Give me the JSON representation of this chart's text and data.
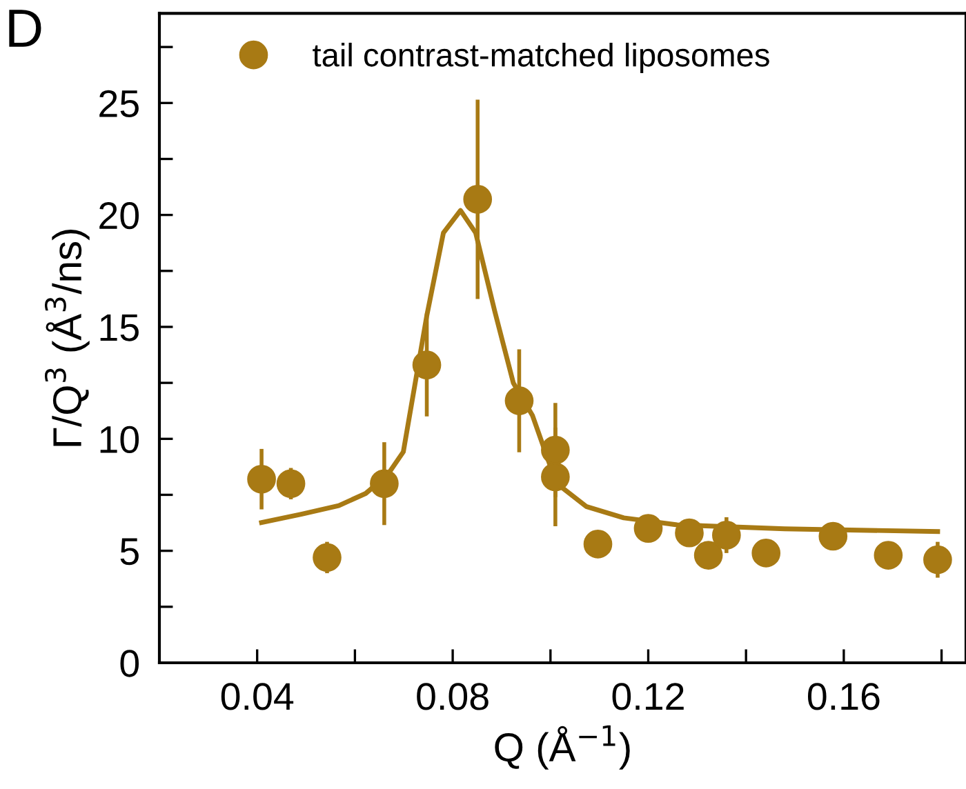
{
  "chart_data": {
    "type": "scatter",
    "xlabel": "Q (Å$^{−1}$)",
    "ylabel": "Γ/Q$^{3}$ (Å$^{3}$/ns)",
    "annotations": [
      "D"
    ],
    "xlim": [
      0.02,
      0.185
    ],
    "ylim": [
      0,
      29
    ],
    "xticks": [
      {
        "value": 0.04,
        "label": "0.04"
      },
      {
        "value": 0.06,
        "label": null
      },
      {
        "value": 0.08,
        "label": "0.08"
      },
      {
        "value": 0.1,
        "label": null
      },
      {
        "value": 0.12,
        "label": "0.12"
      },
      {
        "value": 0.14,
        "label": null
      },
      {
        "value": 0.16,
        "label": "0.16"
      },
      {
        "value": 0.18,
        "label": null
      }
    ],
    "yticks": [
      0,
      {
        "value": 2.5,
        "label": null
      },
      5,
      {
        "value": 7.5,
        "label": null
      },
      10,
      {
        "value": 12.5,
        "label": null
      },
      15,
      {
        "value": 17.5,
        "label": null
      },
      20,
      {
        "value": 22.5,
        "label": null
      },
      25,
      {
        "value": 27.5,
        "label": null
      }
    ],
    "legend": "top left",
    "grid": false,
    "marker": "circle",
    "series": [
      {
        "name": "tail contrast-matched liposomes",
        "color": "#a87a14",
        "x": [
          0.0409,
          0.0469,
          0.0543,
          0.066,
          0.0747,
          0.0851,
          0.0936,
          0.101,
          0.101,
          0.1097,
          0.12,
          0.1284,
          0.1323,
          0.136,
          0.1441,
          0.1578,
          0.1691,
          0.1792
        ],
        "values": [
          8.2,
          8.0,
          4.7,
          8.0,
          13.3,
          20.7,
          11.7,
          9.5,
          8.3,
          5.3,
          6.0,
          5.8,
          4.8,
          5.7,
          4.9,
          5.65,
          4.8,
          4.6
        ],
        "errors": [
          1.35,
          0.7,
          0.7,
          1.85,
          2.3,
          4.45,
          2.3,
          2.1,
          2.2,
          null,
          null,
          null,
          0.6,
          0.8,
          null,
          null,
          null,
          0.8
        ]
      },
      {
        "type": "line",
        "color": "#a87a14",
        "line_style": "solid",
        "marker": "none",
        "x": [
          0.0409,
          0.049,
          0.0567,
          0.0622,
          0.0666,
          0.0699,
          0.0747,
          0.0781,
          0.0816,
          0.0847,
          0.0886,
          0.0924,
          0.0963,
          0.1012,
          0.1073,
          0.115,
          0.1259,
          0.1479,
          0.1792
        ],
        "values": [
          6.26,
          6.63,
          7.02,
          7.56,
          8.37,
          9.42,
          15.5,
          19.2,
          20.2,
          19.2,
          15.7,
          12.5,
          11.05,
          8.02,
          6.98,
          6.47,
          6.16,
          5.98,
          5.86
        ]
      }
    ]
  }
}
